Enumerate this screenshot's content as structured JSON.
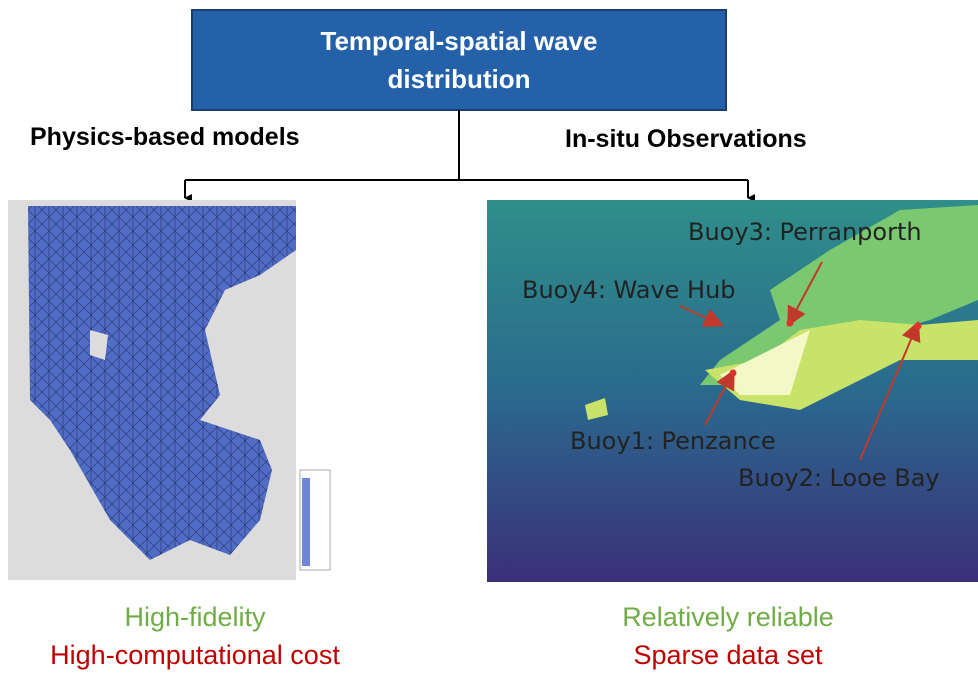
{
  "header": {
    "title": "Temporal-spatial wave distribution"
  },
  "branches": [
    {
      "label": "Physics-based models",
      "pros": "High-fidelity",
      "cons": "High-computational cost"
    },
    {
      "label": "In-situ Observations",
      "pros": "Relatively reliable",
      "cons": "Sparse data set",
      "buoys": [
        "Buoy3: Perranporth",
        "Buoy4: Wave Hub",
        "Buoy1: Penzance",
        "Buoy2: Looe Bay"
      ]
    }
  ]
}
